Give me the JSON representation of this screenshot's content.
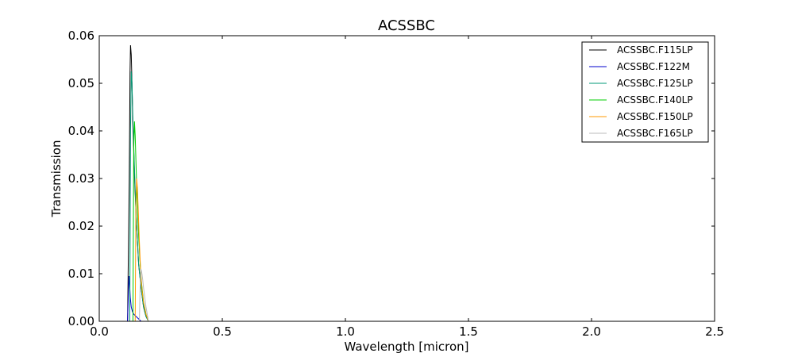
{
  "chart_data": {
    "type": "line",
    "title": "ACSSBC",
    "xlabel": "Wavelength [micron]",
    "ylabel": "Transmission",
    "xlim": [
      0.0,
      2.5
    ],
    "ylim": [
      0.0,
      0.06
    ],
    "xticks": [
      0.0,
      0.5,
      1.0,
      1.5,
      2.0,
      2.5
    ],
    "xtick_labels": [
      "0.0",
      "0.5",
      "1.0",
      "1.5",
      "2.0",
      "2.5"
    ],
    "yticks": [
      0.0,
      0.01,
      0.02,
      0.03,
      0.04,
      0.05,
      0.06
    ],
    "ytick_labels": [
      "0.00",
      "0.01",
      "0.02",
      "0.03",
      "0.04",
      "0.05",
      "0.06"
    ],
    "grid": false,
    "legend_position": "top-right",
    "series": [
      {
        "name": "ACSSBC.F115LP",
        "color": "#000000",
        "x": [
          0.115,
          0.122,
          0.125,
          0.127,
          0.13,
          0.133,
          0.136,
          0.14,
          0.145,
          0.15,
          0.155,
          0.16,
          0.17,
          0.18,
          0.19,
          0.2
        ],
        "y": [
          0.0,
          0.03,
          0.052,
          0.058,
          0.056,
          0.05,
          0.042,
          0.036,
          0.028,
          0.022,
          0.017,
          0.012,
          0.007,
          0.003,
          0.001,
          0.0
        ]
      },
      {
        "name": "ACSSBC.F122M",
        "color": "#0000cc",
        "x": [
          0.115,
          0.118,
          0.121,
          0.123,
          0.126,
          0.13,
          0.135,
          0.14,
          0.15,
          0.16,
          0.17
        ],
        "y": [
          0.0,
          0.005,
          0.0095,
          0.008,
          0.005,
          0.003,
          0.002,
          0.0015,
          0.001,
          0.0005,
          0.0
        ]
      },
      {
        "name": "ACSSBC.F125LP",
        "color": "#009977",
        "x": [
          0.124,
          0.127,
          0.13,
          0.133,
          0.136,
          0.14,
          0.145,
          0.15,
          0.155,
          0.16,
          0.17,
          0.18,
          0.19,
          0.2
        ],
        "y": [
          0.0,
          0.04,
          0.0525,
          0.05,
          0.044,
          0.037,
          0.029,
          0.022,
          0.017,
          0.012,
          0.007,
          0.003,
          0.001,
          0.0
        ]
      },
      {
        "name": "ACSSBC.F140LP",
        "color": "#00cc00",
        "x": [
          0.137,
          0.14,
          0.143,
          0.146,
          0.15,
          0.155,
          0.16,
          0.165,
          0.17,
          0.18,
          0.19,
          0.2
        ],
        "y": [
          0.0,
          0.036,
          0.042,
          0.039,
          0.032,
          0.024,
          0.018,
          0.013,
          0.009,
          0.004,
          0.0015,
          0.0
        ]
      },
      {
        "name": "ACSSBC.F150LP",
        "color": "#ff9900",
        "x": [
          0.146,
          0.149,
          0.152,
          0.155,
          0.158,
          0.162,
          0.166,
          0.17,
          0.175,
          0.18,
          0.19,
          0.2
        ],
        "y": [
          0.0,
          0.025,
          0.03,
          0.028,
          0.024,
          0.018,
          0.013,
          0.009,
          0.006,
          0.004,
          0.0015,
          0.0
        ]
      },
      {
        "name": "ACSSBC.F165LP",
        "color": "#bbbbbb",
        "x": [
          0.163,
          0.166,
          0.169,
          0.172,
          0.176,
          0.18,
          0.185,
          0.19,
          0.195,
          0.2
        ],
        "y": [
          0.0,
          0.007,
          0.011,
          0.0105,
          0.009,
          0.007,
          0.005,
          0.003,
          0.0015,
          0.0
        ]
      }
    ]
  }
}
